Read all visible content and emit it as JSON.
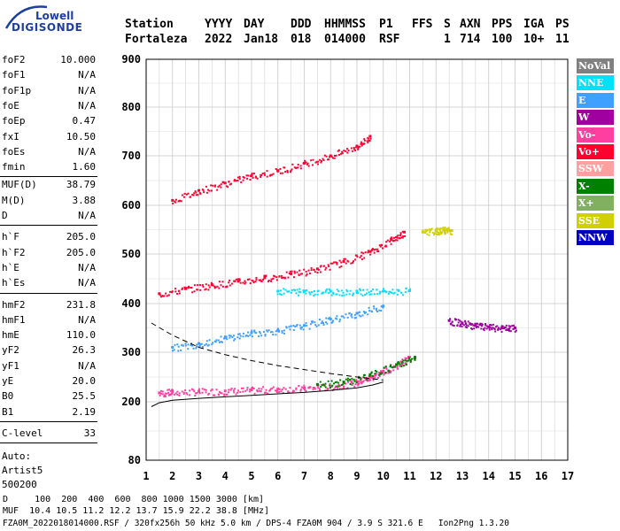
{
  "logo": {
    "line1": "Lowell",
    "line2": "DIGISONDE"
  },
  "header": {
    "labels": [
      "Station",
      "YYYY",
      "DAY",
      "DDD",
      "HHMMSS",
      "P1",
      "FFS",
      "S",
      "AXN",
      "PPS",
      "IGA",
      "PS"
    ],
    "values": [
      "Fortaleza",
      "2022",
      "Jan18",
      "018",
      "014000",
      "RSF",
      "1",
      "714",
      "100",
      "10+",
      "11"
    ]
  },
  "params": {
    "group1": [
      {
        "name": "foF2",
        "value": "10.000"
      },
      {
        "name": "foF1",
        "value": "N/A"
      },
      {
        "name": "foF1p",
        "value": "N/A"
      },
      {
        "name": "foE",
        "value": "N/A"
      },
      {
        "name": "foEp",
        "value": "0.47"
      },
      {
        "name": "fxI",
        "value": "10.50"
      },
      {
        "name": "foEs",
        "value": "N/A"
      },
      {
        "name": "fmin",
        "value": "1.60"
      }
    ],
    "group2": [
      {
        "name": "MUF(D)",
        "value": "38.79"
      },
      {
        "name": "M(D)",
        "value": "3.88"
      },
      {
        "name": "D",
        "value": "N/A"
      }
    ],
    "group3": [
      {
        "name": "h`F",
        "value": "205.0"
      },
      {
        "name": "h`F2",
        "value": "205.0"
      },
      {
        "name": "h`E",
        "value": "N/A"
      },
      {
        "name": "h`Es",
        "value": "N/A"
      }
    ],
    "group4": [
      {
        "name": "hmF2",
        "value": "231.8"
      },
      {
        "name": "hmF1",
        "value": "N/A"
      },
      {
        "name": "hmE",
        "value": "110.0"
      },
      {
        "name": "yF2",
        "value": "26.3"
      },
      {
        "name": "yF1",
        "value": "N/A"
      },
      {
        "name": "yE",
        "value": "20.0"
      },
      {
        "name": "B0",
        "value": "25.5"
      },
      {
        "name": "B1",
        "value": "2.19"
      }
    ],
    "clevel": {
      "name": "C-level",
      "value": "33"
    },
    "auto": [
      "Auto:",
      "Artist5",
      "500200"
    ]
  },
  "legend": [
    {
      "label": "NoVal",
      "color": "#808080"
    },
    {
      "label": "NNE",
      "color": "#00e0ff"
    },
    {
      "label": "E",
      "color": "#3fa0ff"
    },
    {
      "label": "W",
      "color": "#a000a0"
    },
    {
      "label": "Vo-",
      "color": "#ff3fa0"
    },
    {
      "label": "Vo+",
      "color": "#ff0030"
    },
    {
      "label": "SSW",
      "color": "#ffa0a0"
    },
    {
      "label": "X-",
      "color": "#008000"
    },
    {
      "label": "X+",
      "color": "#80b060"
    },
    {
      "label": "SSE",
      "color": "#d0d000"
    },
    {
      "label": "NNW",
      "color": "#0000c0"
    }
  ],
  "chart_data": {
    "type": "scatter",
    "xlabel": "",
    "ylabel": "",
    "xlim": [
      1,
      17
    ],
    "ylim": [
      80,
      900
    ],
    "xticks": [
      1,
      2,
      3,
      4,
      5,
      6,
      7,
      8,
      9,
      10,
      11,
      12,
      13,
      14,
      15,
      16,
      17
    ],
    "yticks": [
      80,
      200,
      300,
      400,
      500,
      600,
      700,
      800,
      900
    ],
    "traces": [
      {
        "name": "o-trace main",
        "color": "#ff3fa0",
        "points": [
          [
            1.5,
            218
          ],
          [
            2,
            220
          ],
          [
            3,
            221
          ],
          [
            4,
            222
          ],
          [
            5,
            224
          ],
          [
            6,
            226
          ],
          [
            7,
            228
          ],
          [
            8,
            231
          ],
          [
            9,
            240
          ],
          [
            9.5,
            250
          ],
          [
            10,
            262
          ],
          [
            10.5,
            275
          ],
          [
            11,
            290
          ]
        ]
      },
      {
        "name": "o-trace second hop",
        "color": "#ff0030",
        "points": [
          [
            1.5,
            420
          ],
          [
            2.5,
            430
          ],
          [
            3.5,
            438
          ],
          [
            4.5,
            445
          ],
          [
            5.5,
            452
          ],
          [
            6.5,
            460
          ],
          [
            7.5,
            470
          ],
          [
            8.5,
            485
          ],
          [
            9.5,
            505
          ],
          [
            10.3,
            530
          ],
          [
            10.8,
            545
          ]
        ]
      },
      {
        "name": "o-trace third hop",
        "color": "#ff0030",
        "points": [
          [
            2,
            610
          ],
          [
            3,
            630
          ],
          [
            4,
            645
          ],
          [
            5,
            660
          ],
          [
            6,
            670
          ],
          [
            7,
            685
          ],
          [
            8,
            700
          ],
          [
            9,
            720
          ],
          [
            9.5,
            740
          ]
        ]
      },
      {
        "name": "oblique E",
        "color": "#3fa0ff",
        "points": [
          [
            2,
            310
          ],
          [
            3,
            318
          ],
          [
            4,
            330
          ],
          [
            5,
            340
          ],
          [
            6,
            345
          ],
          [
            7,
            355
          ],
          [
            8,
            368
          ],
          [
            9,
            380
          ],
          [
            10,
            395
          ]
        ]
      },
      {
        "name": "NNE band",
        "color": "#00e0ff",
        "points": [
          [
            6,
            425
          ],
          [
            7,
            425
          ],
          [
            8,
            425
          ],
          [
            9,
            425
          ],
          [
            10,
            425
          ],
          [
            11,
            426
          ]
        ]
      },
      {
        "name": "W echoes",
        "color": "#a000a0",
        "points": [
          [
            12.5,
            365
          ],
          [
            13,
            360
          ],
          [
            13.5,
            355
          ],
          [
            14,
            352
          ],
          [
            14.5,
            350
          ],
          [
            15,
            350
          ]
        ]
      },
      {
        "name": "x-trace",
        "color": "#008000",
        "points": [
          [
            7.5,
            235
          ],
          [
            8.5,
            240
          ],
          [
            9.5,
            255
          ],
          [
            10.5,
            275
          ],
          [
            11.2,
            290
          ]
        ]
      },
      {
        "name": "SSE echoes",
        "color": "#d0d000",
        "points": [
          [
            11.5,
            545
          ],
          [
            12,
            548
          ],
          [
            12.3,
            550
          ],
          [
            12.6,
            548
          ]
        ]
      }
    ],
    "dashed_profile": [
      [
        1.2,
        360
      ],
      [
        2,
        335
      ],
      [
        3,
        310
      ],
      [
        4,
        295
      ],
      [
        5,
        283
      ],
      [
        6,
        273
      ],
      [
        7,
        265
      ],
      [
        8,
        257
      ],
      [
        9,
        250
      ],
      [
        10,
        244
      ]
    ],
    "solid_profile": [
      [
        1.2,
        190
      ],
      [
        1.5,
        198
      ],
      [
        2,
        203
      ],
      [
        3,
        207
      ],
      [
        4,
        210
      ],
      [
        5,
        213
      ],
      [
        6,
        216
      ],
      [
        7,
        219
      ],
      [
        8,
        223
      ],
      [
        9,
        228
      ],
      [
        9.6,
        234
      ],
      [
        10,
        240
      ]
    ]
  },
  "bottom": {
    "distance_label": "D     100  200  400  600  800 1000 1500 3000 [km]",
    "muf_label": "MUF  10.4 10.5 11.2 12.2 13.7 15.9 22.2 38.8 [MHz]",
    "footer": "FZA0M_2022018014000.RSF / 320fx256h 50 kHz 5.0 km / DPS-4 FZA0M 904 / 3.9 S 321.6 E   Ion2Png 1.3.20"
  }
}
